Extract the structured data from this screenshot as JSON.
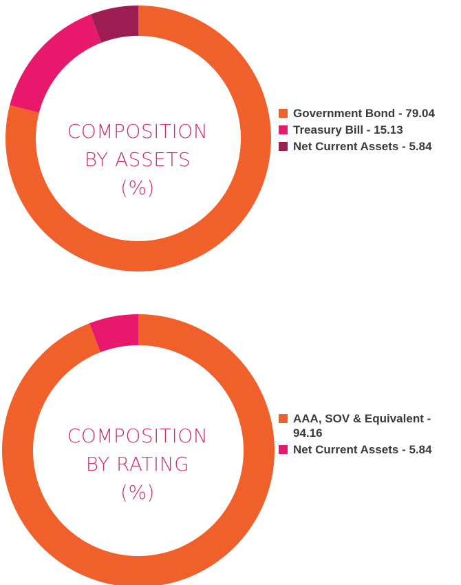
{
  "chart_data": [
    {
      "type": "pie",
      "title_lines": [
        "COMPOSITION",
        "BY ASSETS",
        "(%)"
      ],
      "categories": [
        "Government Bond",
        "Treasury Bill",
        "Net Current Assets"
      ],
      "values": [
        79.04,
        15.13,
        5.84
      ],
      "colors": [
        "#f0602b",
        "#e8196c",
        "#9b1d52"
      ],
      "legend_labels": [
        "Government Bond - 79.04",
        "Treasury Bill - 15.13",
        "Net Current Assets - 5.84"
      ],
      "legend_position": "right"
    },
    {
      "type": "pie",
      "title_lines": [
        "COMPOSITION",
        "BY RATING",
        "(%)"
      ],
      "categories": [
        "AAA, SOV & Equivalent",
        "Net Current Assets"
      ],
      "values": [
        94.16,
        5.84
      ],
      "colors": [
        "#f0602b",
        "#e8196c"
      ],
      "legend_labels": [
        "AAA, SOV & Equivalent - 94.16",
        "Net Current Assets - 5.84"
      ],
      "legend_position": "right"
    }
  ]
}
